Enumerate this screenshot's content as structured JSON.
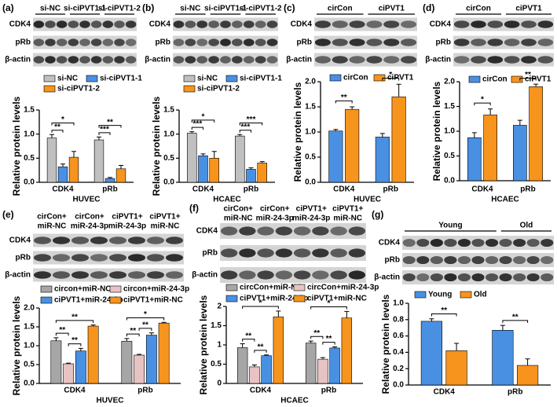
{
  "chart_data": [
    {
      "panel": "(a)",
      "type": "bar",
      "blot": {
        "lanes": [
          [
            "si-NC"
          ],
          [
            "si-ciPVT1-1"
          ],
          [
            "si-ciPVT1-2"
          ]
        ],
        "rows": [
          "CDK4",
          "pRb",
          "β-actin"
        ]
      },
      "categories": [
        "CDK4",
        "pRb"
      ],
      "series": [
        {
          "name": "si-NC",
          "color": "#c0c0c0",
          "values": [
            0.92,
            0.88
          ],
          "errors": [
            0.07,
            0.06
          ]
        },
        {
          "name": "si-ciPVT1-1",
          "color": "#4a90e2",
          "values": [
            0.32,
            0.08
          ],
          "errors": [
            0.06,
            0.02
          ]
        },
        {
          "name": "si-ciPVT1-2",
          "color": "#f7941d",
          "values": [
            0.52,
            0.28
          ],
          "errors": [
            0.12,
            0.07
          ]
        }
      ],
      "ylabel": "Relative protein levels",
      "xlabel": "HUVEC",
      "ylim": [
        0,
        1.5
      ],
      "yticks": [
        {
          "value": 0,
          "label": "0.0"
        },
        0.5,
        {
          "value": 1,
          "label": "1.0"
        },
        1.5
      ],
      "significance": [
        {
          "category": "CDK4",
          "between": [
            "si-NC",
            "si-ciPVT1-1"
          ],
          "label": "**"
        },
        {
          "category": "CDK4",
          "between": [
            "si-NC",
            "si-ciPVT1-2"
          ],
          "label": "*"
        },
        {
          "category": "pRb",
          "between": [
            "si-NC",
            "si-ciPVT1-1"
          ],
          "label": "***"
        },
        {
          "category": "pRb",
          "between": [
            "si-NC",
            "si-ciPVT1-2"
          ],
          "label": "**"
        }
      ]
    },
    {
      "panel": "(b)",
      "type": "bar",
      "blot": {
        "lanes": [
          [
            "si-NC"
          ],
          [
            "si-ciPVT1-1"
          ],
          [
            "si-ciPVT1-2"
          ]
        ],
        "rows": [
          "CDK4",
          "pRb",
          "β-actin"
        ]
      },
      "categories": [
        "CDK4",
        "pRb"
      ],
      "series": [
        {
          "name": "si-NC",
          "color": "#c0c0c0",
          "values": [
            1.02,
            0.96
          ],
          "errors": [
            0.03,
            0.03
          ]
        },
        {
          "name": "si-ciPVT1-1",
          "color": "#4a90e2",
          "values": [
            0.55,
            0.27
          ],
          "errors": [
            0.04,
            0.03
          ]
        },
        {
          "name": "si-ciPVT1-2",
          "color": "#f7941d",
          "values": [
            0.5,
            0.4
          ],
          "errors": [
            0.14,
            0.03
          ]
        }
      ],
      "ylabel": "Relative protein levels",
      "xlabel": "HCAEC",
      "ylim": [
        0,
        1.5
      ],
      "yticks": [
        {
          "value": 0,
          "label": "0.0"
        },
        0.5,
        {
          "value": 1,
          "label": "1.0"
        },
        1.5
      ],
      "significance": [
        {
          "category": "CDK4",
          "between": [
            "si-NC",
            "si-ciPVT1-1"
          ],
          "label": "***"
        },
        {
          "category": "CDK4",
          "between": [
            "si-NC",
            "si-ciPVT1-2"
          ],
          "label": "*"
        },
        {
          "category": "pRb",
          "between": [
            "si-NC",
            "si-ciPVT1-1"
          ],
          "label": "***"
        },
        {
          "category": "pRb",
          "between": [
            "si-NC",
            "si-ciPVT1-2"
          ],
          "label": "***"
        }
      ]
    },
    {
      "panel": "(c)",
      "type": "bar",
      "blot": {
        "lanes": [
          [
            "cirCon"
          ],
          [
            "ciPVT1"
          ]
        ],
        "rows": [
          "CDK4",
          "pRb",
          "β-actin"
        ]
      },
      "categories": [
        "CDK4",
        "pRb"
      ],
      "series": [
        {
          "name": "cirCon",
          "color": "#4a90e2",
          "values": [
            1.02,
            0.9
          ],
          "errors": [
            0.03,
            0.07
          ]
        },
        {
          "name": "ciPVT1",
          "color": "#f7941d",
          "values": [
            1.45,
            1.7
          ],
          "errors": [
            0.05,
            0.25
          ]
        }
      ],
      "ylabel": "Relative protein levels",
      "xlabel": "HUVEC",
      "ylim": [
        0,
        2
      ],
      "yticks": [
        {
          "value": 0,
          "label": "0.0"
        },
        0.5,
        {
          "value": 1,
          "label": "1.0"
        },
        1.5,
        {
          "value": 2,
          "label": "2.0"
        }
      ],
      "significance": [
        {
          "category": "CDK4",
          "between": [
            "cirCon",
            "ciPVT1"
          ],
          "label": "**"
        },
        {
          "category": "pRb",
          "between": [
            "cirCon",
            "ciPVT1"
          ],
          "label": "*"
        }
      ]
    },
    {
      "panel": "(d)",
      "type": "bar",
      "blot": {
        "lanes": [
          [
            "cirCon"
          ],
          [
            "ciPVT1"
          ]
        ],
        "rows": [
          "CDK4",
          "pRb",
          "β-actin"
        ]
      },
      "categories": [
        "CDK4",
        "pRb"
      ],
      "series": [
        {
          "name": "cirCon",
          "color": "#4a90e2",
          "values": [
            0.87,
            1.12
          ],
          "errors": [
            0.1,
            0.1
          ]
        },
        {
          "name": "ciPVT1",
          "color": "#f7941d",
          "values": [
            1.33,
            1.9
          ],
          "errors": [
            0.12,
            0.05
          ]
        }
      ],
      "ylabel": "Relative protein levels",
      "xlabel": "HCAEC",
      "ylim": [
        0,
        2
      ],
      "yticks": [
        {
          "value": 0,
          "label": "0.0"
        },
        0.5,
        {
          "value": 1,
          "label": "1.0"
        },
        1.5,
        {
          "value": 2,
          "label": "2.0"
        }
      ],
      "significance": [
        {
          "category": "CDK4",
          "between": [
            "cirCon",
            "ciPVT1"
          ],
          "label": "*"
        },
        {
          "category": "pRb",
          "between": [
            "cirCon",
            "ciPVT1"
          ],
          "label": "**"
        }
      ]
    },
    {
      "panel": "(e)",
      "type": "bar",
      "blot": {
        "lanes": [
          [
            "cirCon+",
            "miR-NC"
          ],
          [
            "cirCon+",
            "miR-24-3p"
          ],
          [
            "ciPVT1+",
            "miR-24-3p"
          ],
          [
            "ciPVT1+",
            "miR-NC"
          ]
        ],
        "rows": [
          "CDK4",
          "pRb",
          "β-actin"
        ]
      },
      "categories": [
        "CDK4",
        "pRb"
      ],
      "series": [
        {
          "name": "circon+miR-NC",
          "color": "#a6a6a6",
          "values": [
            1.13,
            1.12
          ],
          "errors": [
            0.08,
            0.07
          ]
        },
        {
          "name": "circon+miR-24-3p",
          "color": "#e8c3c3",
          "values": [
            0.52,
            0.75
          ],
          "errors": [
            0.02,
            0.02
          ]
        },
        {
          "name": "ciPVT1+miR-24-3p",
          "color": "#4a90e2",
          "values": [
            0.86,
            1.28
          ],
          "errors": [
            0.07,
            0.06
          ]
        },
        {
          "name": "ciPVT1+miR-NC",
          "color": "#f7941d",
          "values": [
            1.52,
            1.6
          ],
          "errors": [
            0.03,
            0.02
          ]
        }
      ],
      "ylabel": "Relative protein levels",
      "xlabel": "HUVEC",
      "ylim": [
        0,
        2
      ],
      "yticks": [
        {
          "value": 0,
          "label": "0.0"
        },
        0.5,
        {
          "value": 1,
          "label": "1.0"
        },
        1.5,
        {
          "value": 2,
          "label": "2.0"
        }
      ],
      "significance": [
        {
          "category": "CDK4",
          "between": [
            "circon+miR-NC",
            "circon+miR-24-3p"
          ],
          "label": "**"
        },
        {
          "category": "CDK4",
          "between": [
            "circon+miR-24-3p",
            "ciPVT1+miR-24-3p"
          ],
          "label": "**"
        },
        {
          "category": "CDK4",
          "between": [
            "circon+miR-NC",
            "ciPVT1+miR-NC"
          ],
          "label": "**"
        },
        {
          "category": "pRb",
          "between": [
            "circon+miR-NC",
            "circon+miR-24-3p"
          ],
          "label": "**"
        },
        {
          "category": "pRb",
          "between": [
            "circon+miR-24-3p",
            "ciPVT1+miR-24-3p"
          ],
          "label": "**"
        },
        {
          "category": "pRb",
          "between": [
            "circon+miR-NC",
            "ciPVT1+miR-NC"
          ],
          "label": "*"
        }
      ]
    },
    {
      "panel": "(f)",
      "type": "bar",
      "blot": {
        "lanes": [
          [
            "cirCon+",
            "miR-NC"
          ],
          [
            "cirCon+",
            "miR-24-3p"
          ],
          [
            "ciPVT1+",
            "miR-24-3p"
          ],
          [
            "ciPVT1+",
            "miR-NC"
          ]
        ],
        "rows": [
          "CDK4",
          "pRb",
          "β-actin"
        ]
      },
      "categories": [
        "CDK4",
        "pRb"
      ],
      "series": [
        {
          "name": "circCon+miR-NC",
          "color": "#a6a6a6",
          "values": [
            0.93,
            1.05
          ],
          "errors": [
            0.1,
            0.05
          ]
        },
        {
          "name": "circCon+miR-24-3p",
          "color": "#e8c3c3",
          "values": [
            0.43,
            0.63
          ],
          "errors": [
            0.05,
            0.04
          ]
        },
        {
          "name": "ciPVT1+miR-24-3p",
          "color": "#4a90e2",
          "values": [
            0.72,
            0.92
          ],
          "errors": [
            0.02,
            0.03
          ]
        },
        {
          "name": "ciPVT1+miR-NC",
          "color": "#f7941d",
          "values": [
            1.73,
            1.7
          ],
          "errors": [
            0.15,
            0.17
          ]
        }
      ],
      "ylabel": "Relative protein levels",
      "xlabel": "HCAEC",
      "ylim": [
        0,
        2
      ],
      "yticks": [
        0,
        0.5,
        1,
        1.5,
        2
      ],
      "significance": [
        {
          "category": "CDK4",
          "between": [
            "circCon+miR-NC",
            "circCon+miR-24-3p"
          ],
          "label": "**"
        },
        {
          "category": "CDK4",
          "between": [
            "circCon+miR-24-3p",
            "ciPVT1+miR-24-3p"
          ],
          "label": "**"
        },
        {
          "category": "CDK4",
          "between": [
            "circCon+miR-NC",
            "ciPVT1+miR-NC"
          ],
          "label": "*"
        },
        {
          "category": "pRb",
          "between": [
            "circCon+miR-NC",
            "circCon+miR-24-3p"
          ],
          "label": "**"
        },
        {
          "category": "pRb",
          "between": [
            "circCon+miR-24-3p",
            "ciPVT1+miR-24-3p"
          ],
          "label": "**"
        },
        {
          "category": "pRb",
          "between": [
            "circCon+miR-NC",
            "ciPVT1+miR-NC"
          ],
          "label": "*"
        }
      ]
    },
    {
      "panel": "(g)",
      "type": "bar",
      "blot": {
        "lanes": [
          [
            "Young"
          ],
          [
            "Old"
          ]
        ],
        "rows": [
          "CDK4",
          "pRb",
          "β-actin"
        ]
      },
      "categories": [
        "CDK4",
        "pRb"
      ],
      "series": [
        {
          "name": "Young",
          "color": "#4a90e2",
          "values": [
            0.78,
            0.67
          ],
          "errors": [
            0.03,
            0.06
          ]
        },
        {
          "name": "Old",
          "color": "#f7941d",
          "values": [
            0.42,
            0.24
          ],
          "errors": [
            0.09,
            0.08
          ]
        }
      ],
      "ylabel": "Relative protein levels",
      "ylim": [
        0,
        1
      ],
      "yticks": [
        {
          "value": 0,
          "label": "0.0"
        },
        0.2,
        0.4,
        0.6,
        0.8,
        {
          "value": 1,
          "label": "1.0"
        }
      ],
      "significance": [
        {
          "category": "CDK4",
          "between": [
            "Young",
            "Old"
          ],
          "label": "**"
        },
        {
          "category": "pRb",
          "between": [
            "Young",
            "Old"
          ],
          "label": "**"
        }
      ]
    }
  ]
}
